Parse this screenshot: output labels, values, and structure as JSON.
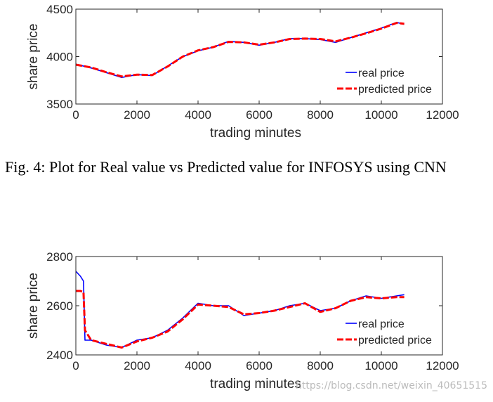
{
  "chart_data": [
    {
      "type": "line",
      "xlabel": "trading minutes",
      "ylabel": "share price",
      "xlim": [
        0,
        12000
      ],
      "xticks": [
        0,
        2000,
        4000,
        6000,
        8000,
        10000,
        12000
      ],
      "ylim": [
        3500,
        4500
      ],
      "yticks": [
        3500,
        4000,
        4500
      ],
      "legend": "lower right",
      "x": [
        0,
        500,
        1000,
        1500,
        2000,
        2500,
        3000,
        3500,
        4000,
        4500,
        5000,
        5500,
        6000,
        6500,
        7000,
        7500,
        8000,
        8500,
        9000,
        9500,
        10000,
        10500,
        10750
      ],
      "series": [
        {
          "name": "real price",
          "color": "#0000ff",
          "linestyle": "solid",
          "values": [
            3920,
            3880,
            3830,
            3780,
            3810,
            3800,
            3900,
            4000,
            4060,
            4100,
            4160,
            4150,
            4120,
            4150,
            4190,
            4190,
            4180,
            4150,
            4200,
            4250,
            4300,
            4360,
            4340
          ]
        },
        {
          "name": "predicted price",
          "color": "#ff0000",
          "linestyle": "dashed",
          "values": [
            3915,
            3885,
            3835,
            3790,
            3810,
            3805,
            3895,
            4000,
            4065,
            4100,
            4155,
            4150,
            4125,
            4150,
            4185,
            4190,
            4185,
            4160,
            4200,
            4245,
            4295,
            4355,
            4345
          ]
        }
      ]
    },
    {
      "type": "line",
      "xlabel": "trading minutes",
      "ylabel": "share price",
      "xlim": [
        0,
        12000
      ],
      "xticks": [
        0,
        2000,
        4000,
        6000,
        8000,
        10000,
        12000
      ],
      "ylim": [
        2400,
        2800
      ],
      "yticks": [
        2400,
        2600,
        2800
      ],
      "legend": "lower right",
      "x": [
        0,
        150,
        250,
        300,
        500,
        1000,
        1500,
        2000,
        2500,
        3000,
        3500,
        4000,
        4500,
        5000,
        5500,
        6000,
        6500,
        7000,
        7500,
        8000,
        8500,
        9000,
        9500,
        10000,
        10500,
        10750
      ],
      "series": [
        {
          "name": "real price",
          "color": "#0000ff",
          "linestyle": "solid",
          "values": [
            2740,
            2720,
            2700,
            2460,
            2460,
            2440,
            2430,
            2460,
            2470,
            2500,
            2550,
            2610,
            2600,
            2600,
            2560,
            2570,
            2580,
            2600,
            2610,
            2580,
            2590,
            2620,
            2640,
            2630,
            2640,
            2645
          ]
        },
        {
          "name": "predicted price",
          "color": "#ff0000",
          "linestyle": "dashed",
          "values": [
            2660,
            2660,
            2655,
            2500,
            2460,
            2445,
            2430,
            2455,
            2470,
            2495,
            2545,
            2605,
            2600,
            2595,
            2565,
            2570,
            2580,
            2595,
            2610,
            2575,
            2590,
            2620,
            2635,
            2630,
            2635,
            2635
          ]
        }
      ]
    }
  ],
  "caption": "Fig. 4: Plot for Real value vs Predicted value for INFOSYS using CNN",
  "watermark": "https://blog.csdn.net/weixin_40651515"
}
